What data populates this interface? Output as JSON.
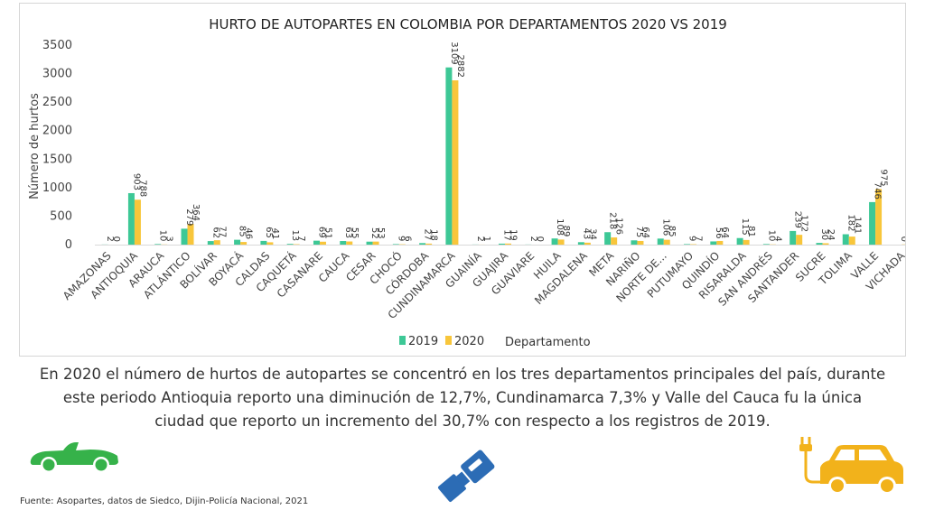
{
  "colors": {
    "series_2019": "#3dc896",
    "series_2020": "#f8c63b",
    "car_green": "#36b24a",
    "car_yellow": "#f2b21b",
    "seatbelt_blue": "#2c6cb5"
  },
  "icons": [
    "green-convertible-car-icon",
    "seatbelt-buckle-icon",
    "yellow-electric-car-icon"
  ],
  "summary": "En 2020 el número de hurtos de autopartes se concentró en los tres departamentos principales del país, durante este periodo Antioquia reporto una diminución de 12,7%, Cundinamarca 7,3% y Valle del Cauca fu la única ciudad que reporto un incremento del 30,7% con respecto a los registros de 2019.",
  "source": "Fuente: Asopartes, datos de Siedco, Dijin-Policía Nacional, 2021",
  "chart_data": {
    "type": "bar",
    "title": "HURTO DE AUTOPARTES EN COLOMBIA  POR DEPARTAMENTOS 2020 VS 2019",
    "xlabel": "Departamento",
    "ylabel": "Número de hurtos",
    "ylim": [
      0,
      3500
    ],
    "yticks": [
      "0",
      "500",
      "1000",
      "1500",
      "2000",
      "2500",
      "3000",
      "3500"
    ],
    "grid": false,
    "legend": "bottom",
    "categories": [
      "AMAZONAS",
      "ANTIOQUIA",
      "ARAUCA",
      "ATLÁNTICO",
      "BOLÍVAR",
      "BOYACÁ",
      "CALDAS",
      "CAQUETÁ",
      "CASANARE",
      "CAUCA",
      "CESAR",
      "CHOCÓ",
      "CÓRDOBA",
      "CUNDINAMARCA",
      "GUAINÍA",
      "GUAJIRA",
      "GUAVIARE",
      "HUILA",
      "MAGDALENA",
      "META",
      "NARIÑO",
      "NORTE DE...",
      "PUTUMAYO",
      "QUINDÍO",
      "RISARALDA",
      "SAN ANDRÉS",
      "SANTANDER",
      "SUCRE",
      "TOLIMA",
      "VALLE",
      "VICHADA"
    ],
    "series": [
      {
        "name": "2019",
        "values": [
          2,
          903,
          10,
          279,
          62,
          85,
          65,
          13,
          69,
          63,
          52,
          9,
          27,
          3109,
          2,
          17,
          2,
          108,
          43,
          218,
          75,
          106,
          9,
          56,
          115,
          10,
          239,
          30,
          182,
          746,
          0
        ]
      },
      {
        "name": "2020",
        "values": [
          0,
          788,
          3,
          364,
          77,
          46,
          41,
          7,
          51,
          55,
          53,
          6,
          18,
          2882,
          1,
          19,
          0,
          89,
          34,
          126,
          64,
          85,
          7,
          64,
          81,
          4,
          172,
          24,
          141,
          975,
          4
        ]
      }
    ]
  }
}
